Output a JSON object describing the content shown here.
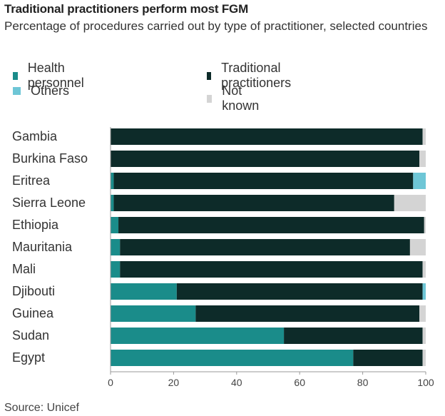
{
  "chart_data": {
    "type": "bar",
    "orientation": "horizontal",
    "stacked": true,
    "title": "Traditional practitioners perform most FGM",
    "subtitle": "Percentage of procedures carried out by type of practitioner, selected countries",
    "categories": [
      "Gambia",
      "Burkina Faso",
      "Eritrea",
      "Sierra Leone",
      "Ethiopia",
      "Mauritania",
      "Mali",
      "Djibouti",
      "Guinea",
      "Sudan",
      "Egypt"
    ],
    "series": [
      {
        "name": "Health personnel",
        "color": "#1a8c8a",
        "values": [
          0,
          0,
          1,
          1,
          2.5,
          3,
          3,
          21,
          27,
          55,
          77
        ]
      },
      {
        "name": "Traditional practitioners",
        "color": "#0d2b29",
        "values": [
          99,
          98,
          95,
          89,
          97,
          92,
          96,
          78,
          71,
          44,
          22
        ]
      },
      {
        "name": "Others",
        "color": "#6ec6d6",
        "values": [
          0,
          0,
          4,
          0,
          0,
          0,
          0,
          1,
          0,
          0,
          0
        ]
      },
      {
        "name": "Not known",
        "color": "#d4d4d4",
        "values": [
          1,
          2,
          0,
          10,
          0.5,
          5,
          1,
          0,
          2,
          1,
          1
        ]
      }
    ],
    "xlim": [
      0,
      100
    ],
    "xticks": [
      "0",
      "20",
      "40",
      "60",
      "80",
      "100"
    ],
    "legend_position": "top",
    "grid": false
  },
  "source": "Source: Unicef"
}
